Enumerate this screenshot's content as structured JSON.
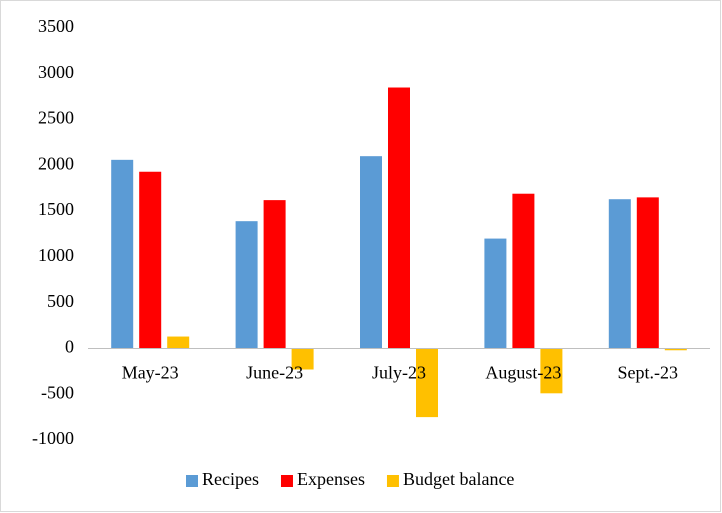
{
  "chart_data": {
    "type": "bar",
    "categories": [
      "May-23",
      "June-23",
      "July-23",
      "August-23",
      "Sept.-23"
    ],
    "series": [
      {
        "name": "Recipes",
        "color": "#5b9bd5",
        "values": [
          2060,
          1390,
          2100,
          1200,
          1630
        ]
      },
      {
        "name": "Expenses",
        "color": "#ff0000",
        "values": [
          1930,
          1620,
          2850,
          1690,
          1650
        ]
      },
      {
        "name": "Budget balance",
        "color": "#ffc000",
        "values": [
          130,
          -230,
          -750,
          -490,
          -20
        ]
      }
    ],
    "ylim": [
      -1000,
      3500
    ],
    "yticks": [
      -1000,
      -500,
      0,
      500,
      1000,
      1500,
      2000,
      2500,
      3000,
      3500
    ],
    "grid": false,
    "legend": "bottom"
  }
}
